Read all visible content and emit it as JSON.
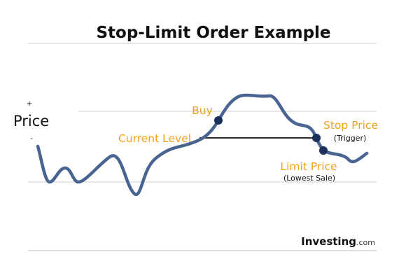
{
  "title": "Stop-Limit Order Example",
  "axis": {
    "label": "Price",
    "plus": "+",
    "minus": "-"
  },
  "annotations": {
    "buy": "Buy",
    "current_level": "Current Level",
    "stop_price": "Stop Price",
    "stop_price_note": "(Trigger)",
    "limit_price": "Limit Price",
    "limit_price_note": "(Lowest Sale)"
  },
  "logo": {
    "brand": "Investing",
    "suffix": ".com"
  },
  "colors": {
    "price_line": "#4a6491",
    "marker": "#1b2f5c",
    "annotation": "#f5a01a",
    "gridline": "#c9c9c9",
    "text": "#111111"
  }
}
